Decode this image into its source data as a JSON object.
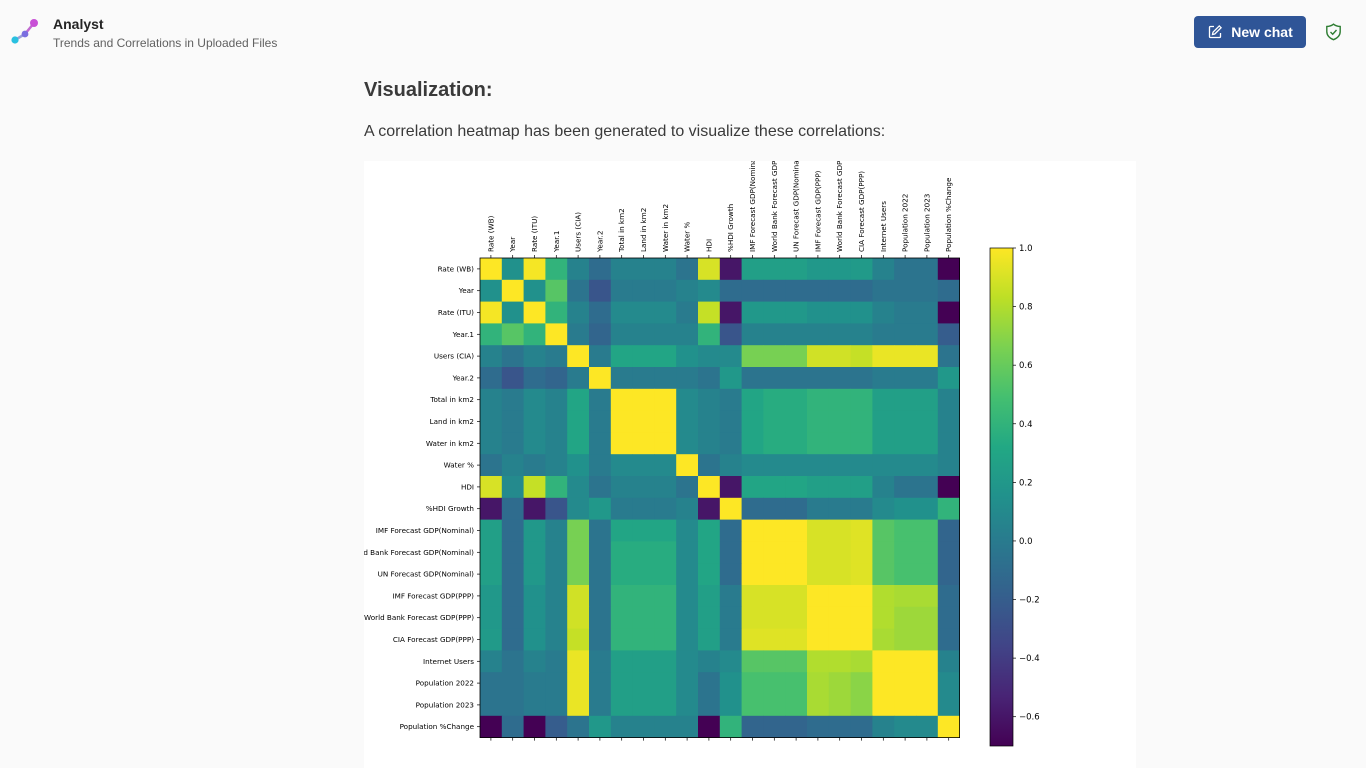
{
  "header": {
    "app_title": "Analyst",
    "subtitle": "Trends and Correlations in Uploaded Files",
    "new_chat_label": "New chat",
    "logo_icon": "analyst-logo-icon",
    "shield_icon": "shield-check-icon",
    "accent_color": "#2f5597"
  },
  "content": {
    "heading": "Visualization:",
    "paragraph": "A correlation heatmap has been generated to visualize these correlations:"
  },
  "chart_data": {
    "type": "heatmap",
    "title": "",
    "colormap": "viridis",
    "vmin": -0.7,
    "vmax": 1.0,
    "labels": [
      "Rate (WB)",
      "Year",
      "Rate (ITU)",
      "Year.1",
      "Users (CIA)",
      "Year.2",
      "Total in km2",
      "Land in km2",
      "Water in km2",
      "Water %",
      "HDI",
      "%HDI Growth",
      "IMF Forecast GDP(Nominal)",
      "World Bank Forecast GDP(Nominal)",
      "UN Forecast GDP(Nominal)",
      "IMF Forecast GDP(PPP)",
      "World Bank Forecast GDP(PPP)",
      "CIA Forecast GDP(PPP)",
      "Internet Users",
      "Population 2022",
      "Population 2023",
      "Population %Change"
    ],
    "y_labels_visible": [
      "Rate (WB)",
      "Year",
      "Rate (ITU)",
      "Year.1",
      "Users (CIA)",
      "Year.2",
      "Total in km2",
      "Land in km2",
      "Water in km2",
      "Water %",
      "HDI",
      "%HDI Growth",
      "IMF Forecast GDP(Nominal)",
      "d Bank Forecast GDP(Nominal)",
      "UN Forecast GDP(Nominal)",
      "IMF Forecast GDP(PPP)",
      "World Bank Forecast GDP(PPP)",
      "CIA Forecast GDP(PPP)",
      "Internet Users",
      "Population 2022",
      "Population 2023",
      "Population %Change"
    ],
    "x_labels_visible": [
      "Rate (WB)",
      "Year",
      "Rate (ITU)",
      "Year.1",
      "Users (CIA)",
      "Year.2",
      "Total in km2",
      "Land in km2",
      "Water in km2",
      "Water %",
      "HDI",
      "%HDI Growth",
      "IMF Forecast GDP(Nominal",
      "World Bank Forecast GDP",
      "UN Forecast GDP(Nomina",
      "IMF Forecast GDP(PPP)",
      "World Bank Forecast GDP",
      "CIA Forecast GDP(PPP)",
      "Internet Users",
      "Population 2022",
      "Population 2023",
      "Population %Change"
    ],
    "colorbar_ticks": [
      "1.0",
      "0.8",
      "0.6",
      "0.4",
      "0.2",
      "0.0",
      "−0.2",
      "−0.4",
      "−0.6"
    ],
    "colorbar_tick_values": [
      1.0,
      0.8,
      0.6,
      0.4,
      0.2,
      0.0,
      -0.2,
      -0.4,
      -0.6
    ],
    "matrix": [
      [
        1.0,
        0.15,
        0.98,
        0.4,
        0.05,
        -0.1,
        0.05,
        0.05,
        0.05,
        -0.05,
        0.9,
        -0.6,
        0.25,
        0.25,
        0.25,
        0.2,
        0.2,
        0.22,
        0.05,
        -0.05,
        -0.05,
        -0.7
      ],
      [
        0.15,
        1.0,
        0.15,
        0.55,
        -0.05,
        -0.25,
        0.0,
        0.0,
        0.0,
        0.05,
        0.1,
        -0.1,
        -0.1,
        -0.1,
        -0.1,
        -0.1,
        -0.1,
        -0.1,
        -0.05,
        -0.05,
        -0.05,
        -0.1
      ],
      [
        0.98,
        0.15,
        1.0,
        0.4,
        0.05,
        -0.1,
        0.1,
        0.1,
        0.1,
        0.0,
        0.85,
        -0.6,
        0.2,
        0.2,
        0.2,
        0.15,
        0.15,
        0.15,
        0.05,
        0.0,
        0.0,
        -0.7
      ],
      [
        0.4,
        0.55,
        0.4,
        1.0,
        0.0,
        -0.15,
        0.05,
        0.05,
        0.05,
        0.05,
        0.4,
        -0.25,
        0.05,
        0.05,
        0.05,
        0.05,
        0.05,
        0.05,
        0.0,
        0.0,
        0.0,
        -0.2
      ],
      [
        0.05,
        -0.05,
        0.05,
        0.0,
        1.0,
        0.0,
        0.3,
        0.3,
        0.3,
        0.15,
        0.1,
        0.1,
        0.65,
        0.65,
        0.65,
        0.88,
        0.88,
        0.85,
        0.95,
        0.95,
        0.95,
        -0.05
      ],
      [
        -0.1,
        -0.25,
        -0.1,
        -0.15,
        0.0,
        1.0,
        0.0,
        0.0,
        0.0,
        0.0,
        -0.05,
        0.2,
        -0.05,
        -0.05,
        -0.05,
        -0.05,
        -0.05,
        -0.05,
        0.0,
        0.0,
        0.0,
        0.2
      ],
      [
        0.05,
        0.0,
        0.1,
        0.05,
        0.3,
        0.0,
        1.0,
        1.0,
        1.0,
        0.1,
        0.05,
        0.0,
        0.3,
        0.35,
        0.35,
        0.4,
        0.4,
        0.4,
        0.25,
        0.25,
        0.25,
        0.05
      ],
      [
        0.05,
        0.0,
        0.1,
        0.05,
        0.3,
        0.0,
        1.0,
        1.0,
        1.0,
        0.1,
        0.05,
        0.0,
        0.3,
        0.35,
        0.35,
        0.4,
        0.4,
        0.4,
        0.25,
        0.25,
        0.25,
        0.05
      ],
      [
        0.05,
        0.0,
        0.1,
        0.05,
        0.3,
        0.0,
        1.0,
        1.0,
        1.0,
        0.1,
        0.05,
        0.0,
        0.3,
        0.35,
        0.35,
        0.4,
        0.4,
        0.4,
        0.25,
        0.25,
        0.25,
        0.05
      ],
      [
        -0.05,
        0.05,
        0.0,
        0.05,
        0.15,
        0.0,
        0.1,
        0.1,
        0.1,
        1.0,
        -0.05,
        0.05,
        0.1,
        0.1,
        0.1,
        0.1,
        0.1,
        0.1,
        0.1,
        0.1,
        0.1,
        0.05
      ],
      [
        0.9,
        0.1,
        0.85,
        0.4,
        0.1,
        -0.05,
        0.05,
        0.05,
        0.05,
        -0.05,
        1.0,
        -0.6,
        0.3,
        0.3,
        0.3,
        0.25,
        0.25,
        0.25,
        0.05,
        -0.05,
        -0.05,
        -0.7
      ],
      [
        -0.6,
        -0.1,
        -0.6,
        -0.25,
        0.1,
        0.2,
        0.0,
        0.0,
        0.0,
        0.05,
        -0.6,
        1.0,
        -0.1,
        -0.1,
        -0.1,
        0.0,
        0.0,
        0.0,
        0.1,
        0.15,
        0.15,
        0.4
      ],
      [
        0.25,
        -0.1,
        0.2,
        0.05,
        0.65,
        -0.05,
        0.3,
        0.3,
        0.3,
        0.1,
        0.3,
        -0.1,
        1.0,
        1.0,
        1.0,
        0.9,
        0.9,
        0.92,
        0.55,
        0.5,
        0.5,
        -0.15
      ],
      [
        0.25,
        -0.1,
        0.2,
        0.05,
        0.65,
        -0.05,
        0.35,
        0.35,
        0.35,
        0.1,
        0.3,
        -0.1,
        1.0,
        1.0,
        1.0,
        0.9,
        0.9,
        0.92,
        0.55,
        0.5,
        0.5,
        -0.15
      ],
      [
        0.25,
        -0.1,
        0.2,
        0.05,
        0.65,
        -0.05,
        0.35,
        0.35,
        0.35,
        0.1,
        0.3,
        -0.1,
        1.0,
        1.0,
        1.0,
        0.9,
        0.9,
        0.92,
        0.55,
        0.5,
        0.5,
        -0.15
      ],
      [
        0.2,
        -0.1,
        0.15,
        0.05,
        0.88,
        -0.05,
        0.4,
        0.4,
        0.4,
        0.1,
        0.25,
        0.0,
        0.9,
        0.9,
        0.9,
        1.0,
        1.0,
        1.0,
        0.8,
        0.78,
        0.78,
        -0.1
      ],
      [
        0.2,
        -0.1,
        0.15,
        0.05,
        0.88,
        -0.05,
        0.4,
        0.4,
        0.4,
        0.1,
        0.25,
        0.0,
        0.9,
        0.9,
        0.9,
        1.0,
        1.0,
        1.0,
        0.8,
        0.75,
        0.75,
        -0.1
      ],
      [
        0.22,
        -0.1,
        0.15,
        0.05,
        0.85,
        -0.05,
        0.4,
        0.4,
        0.4,
        0.1,
        0.25,
        0.0,
        0.92,
        0.92,
        0.92,
        1.0,
        1.0,
        1.0,
        0.78,
        0.75,
        0.75,
        -0.1
      ],
      [
        0.05,
        -0.05,
        0.05,
        0.0,
        0.95,
        0.0,
        0.25,
        0.25,
        0.25,
        0.1,
        0.05,
        0.1,
        0.55,
        0.55,
        0.55,
        0.8,
        0.8,
        0.78,
        1.0,
        1.0,
        1.0,
        0.05
      ],
      [
        -0.05,
        -0.05,
        0.0,
        0.0,
        0.95,
        0.0,
        0.25,
        0.25,
        0.25,
        0.1,
        -0.05,
        0.15,
        0.5,
        0.5,
        0.5,
        0.78,
        0.75,
        0.7,
        1.0,
        1.0,
        1.0,
        0.1
      ],
      [
        -0.05,
        -0.05,
        0.0,
        0.0,
        0.95,
        0.0,
        0.25,
        0.25,
        0.25,
        0.1,
        -0.05,
        0.15,
        0.5,
        0.5,
        0.5,
        0.78,
        0.75,
        0.7,
        1.0,
        1.0,
        1.0,
        0.1
      ],
      [
        -0.7,
        -0.1,
        -0.7,
        -0.2,
        -0.05,
        0.2,
        0.05,
        0.05,
        0.05,
        0.05,
        -0.7,
        0.4,
        -0.15,
        -0.15,
        -0.15,
        -0.1,
        -0.1,
        -0.1,
        0.05,
        0.1,
        0.1,
        1.0
      ]
    ]
  }
}
